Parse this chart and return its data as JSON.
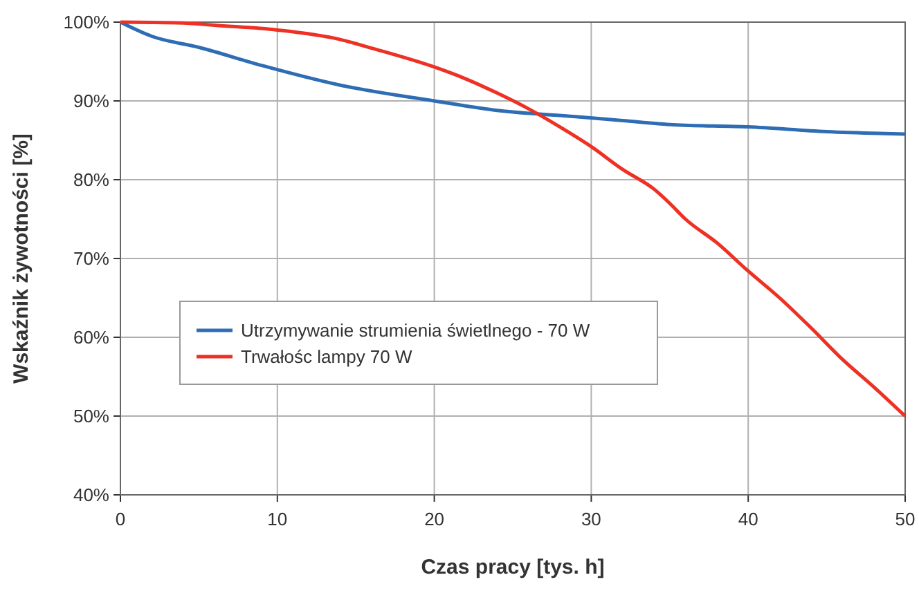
{
  "chart_data": {
    "type": "line",
    "xlabel": "Czas pracy [tys. h]",
    "ylabel": "Wskaźnik żywotności [%]",
    "xlim": [
      0,
      50
    ],
    "xticks": [
      0,
      10,
      20,
      30,
      40,
      50
    ],
    "ylim": [
      40,
      100
    ],
    "yticks": [
      {
        "value": 40,
        "label": "40%"
      },
      {
        "value": 50,
        "label": "50%"
      },
      {
        "value": 60,
        "label": "60%"
      },
      {
        "value": 70,
        "label": "70%"
      },
      {
        "value": 80,
        "label": "80%"
      },
      {
        "value": 90,
        "label": "90%"
      },
      {
        "value": 100,
        "label": "100%"
      }
    ],
    "grid": true,
    "legend": "left",
    "line_style": "solid",
    "marker": "none",
    "series": [
      {
        "name": "Utrzymywanie strumienia świetlnego - 70 W",
        "color": "#2e6db4",
        "x": [
          0,
          2,
          5,
          9,
          14,
          20,
          24,
          29,
          32,
          35,
          40,
          45,
          50
        ],
        "values": [
          100,
          98.2,
          96.8,
          94.5,
          92,
          90,
          88.8,
          88,
          87.5,
          87,
          86.7,
          86.1,
          85.8
        ]
      },
      {
        "name": "Trwałośc lampy 70 W",
        "color": "#ee3124",
        "x": [
          0,
          4,
          6,
          10,
          14,
          16,
          20,
          22,
          24,
          26,
          28,
          30,
          32,
          34,
          35,
          36,
          38,
          40,
          42,
          44,
          46,
          48,
          50
        ],
        "values": [
          100,
          99.9,
          99.6,
          99,
          97.8,
          96.7,
          94.3,
          92.8,
          91,
          89,
          86.7,
          84.2,
          81.3,
          78.8,
          77,
          75,
          72,
          68.4,
          65,
          61.2,
          57.2,
          53.7,
          50
        ]
      }
    ]
  }
}
